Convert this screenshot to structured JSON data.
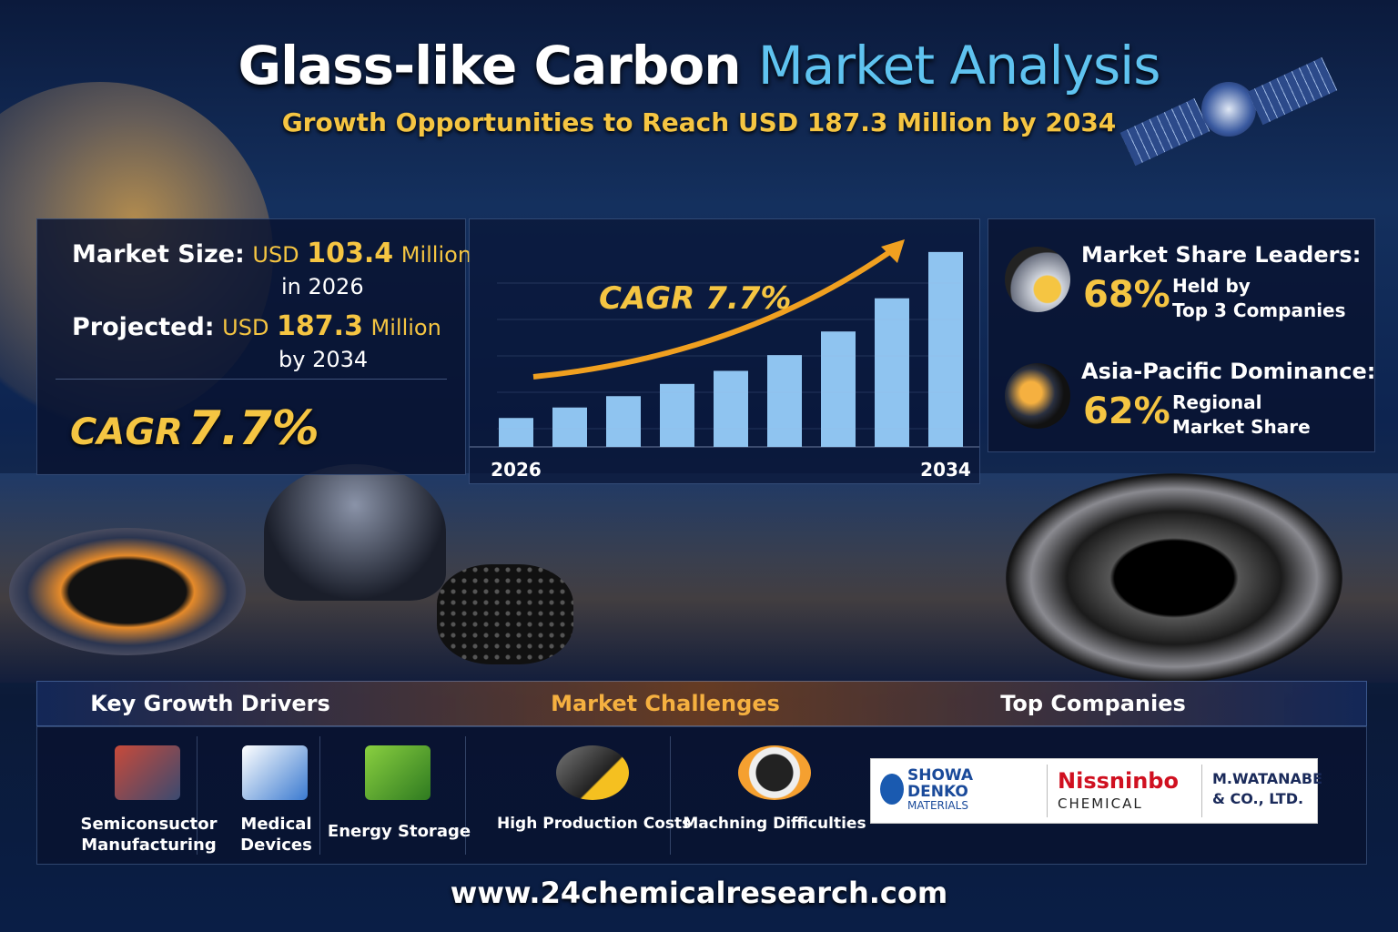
{
  "header": {
    "title_main": "Glass-like Carbon",
    "title_accent": "Market Analysis",
    "subtitle": "Growth Opportunities to Reach USD 187.3 Million by 2034"
  },
  "market_size": {
    "label": "Market Size:",
    "prefix": "USD",
    "value": "103.4",
    "unit": "Million",
    "year": "in 2026"
  },
  "projected": {
    "label": "Projected:",
    "prefix": "USD",
    "value": "187.3",
    "unit": "Million",
    "year": "by 2034"
  },
  "cagr": {
    "label": "CAGR",
    "value": "7.7%"
  },
  "chart_data": {
    "type": "bar",
    "annotation": "CAGR 7.7%",
    "categories": [
      "2026",
      null,
      null,
      null,
      null,
      null,
      null,
      null,
      "2034"
    ],
    "values": [
      33,
      45,
      58,
      72,
      87,
      105,
      132,
      170,
      223
    ],
    "ylim": [
      0,
      250
    ],
    "color": "#8fc4f0"
  },
  "highlights": [
    {
      "title": "Market Share Leaders:",
      "value": "68%",
      "note_lines": [
        "Held by",
        "Top 3 Companies"
      ]
    },
    {
      "title": "Asia-Pacific Dominance:",
      "value": "62%",
      "note_lines": [
        "Regional",
        "Market Share"
      ]
    }
  ],
  "sections": {
    "drivers": "Key Growth Drivers",
    "challenges": "Market Challenges",
    "companies": "Top Companies"
  },
  "drivers": [
    [
      "Semiconsuctor",
      "Manufacturing"
    ],
    [
      "Medical",
      "Devices"
    ],
    [
      "Energy Storage"
    ]
  ],
  "challenges": [
    "High Production Costs",
    "Machning Difficulties"
  ],
  "companies": [
    [
      "SHOWA",
      "DENKO",
      "MATERIALS"
    ],
    [
      "Nissninbo",
      "CHEMICAL"
    ],
    [
      "M.WATANABE",
      "& CO., LTD."
    ]
  ],
  "footer": "www.24chemicalresearch.com"
}
